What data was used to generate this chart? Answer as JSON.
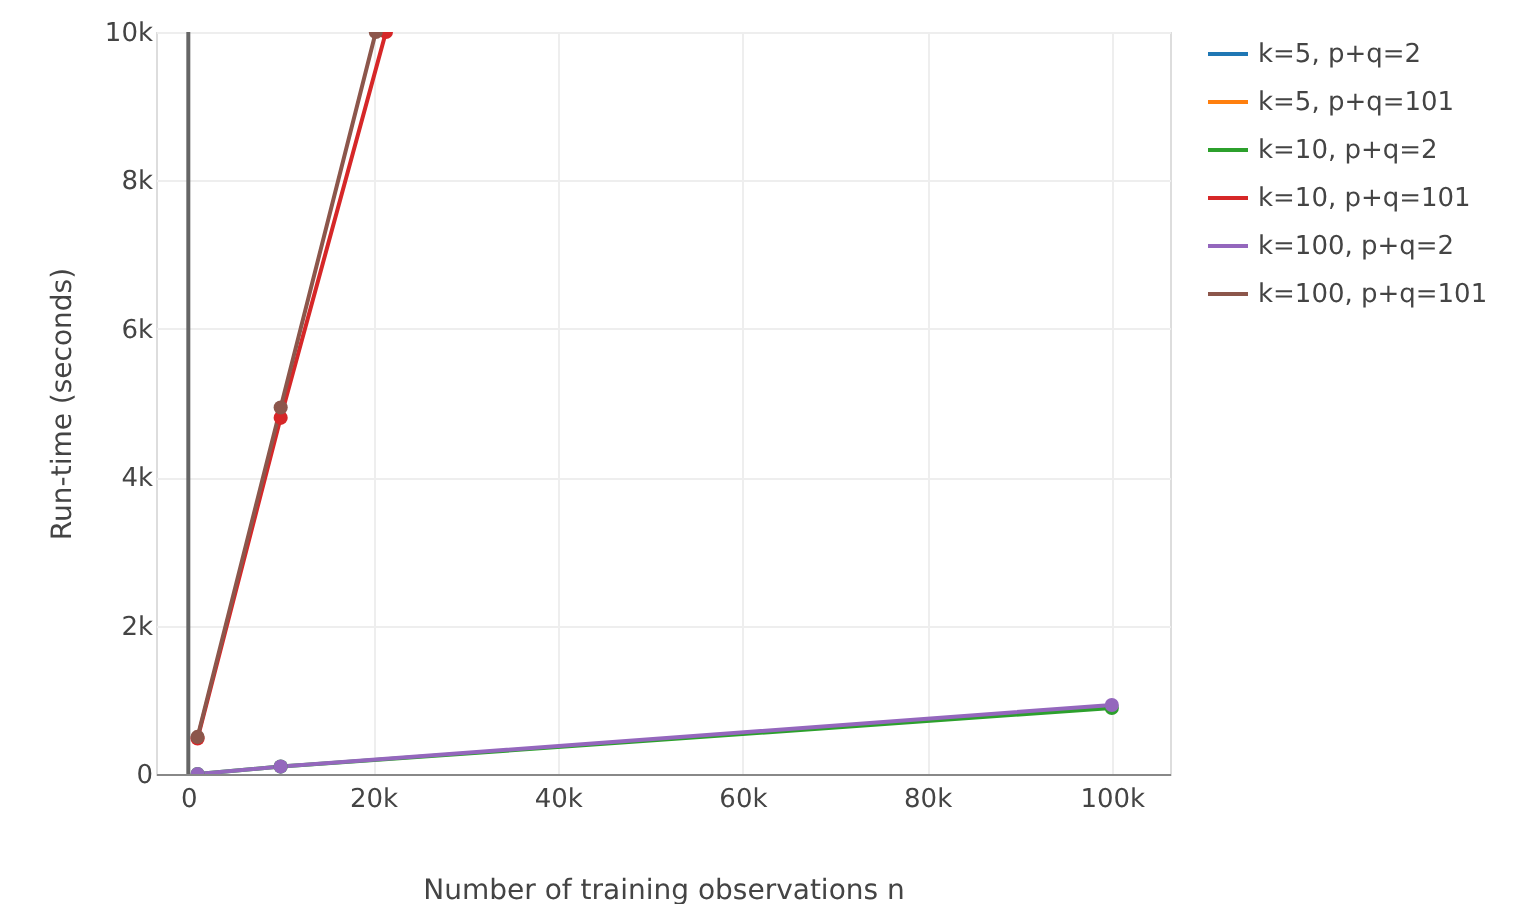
{
  "chart_data": {
    "type": "line",
    "xlabel": "Number of training observations n",
    "ylabel": "Run-time (seconds)",
    "x": [
      1000,
      10000,
      100000
    ],
    "series": [
      {
        "name": "k=5, p+q=2",
        "color": "#1f77b4",
        "values": [
          null,
          null,
          null
        ]
      },
      {
        "name": "k=5, p+q=101",
        "color": "#ff7f0e",
        "values": [
          null,
          null,
          null
        ]
      },
      {
        "name": "k=10, p+q=2",
        "color": "#2ca02c",
        "values": [
          0,
          100,
          890
        ]
      },
      {
        "name": "k=10, p+q=101",
        "color": "#d62728",
        "x": [
          1000,
          10000,
          21400
        ],
        "values": [
          480,
          4800,
          10000
        ]
      },
      {
        "name": "k=100, p+q=2",
        "color": "#9467bd",
        "values": [
          0,
          100,
          930
        ]
      },
      {
        "name": "k=100, p+q=101",
        "color": "#8c564b",
        "x": [
          1000,
          10000,
          20300
        ],
        "values": [
          500,
          4940,
          10000
        ]
      }
    ],
    "xlim": [
      -3500,
      106300
    ],
    "ylim": [
      0,
      10000
    ],
    "xticks": [
      0,
      {
        "value": 20000,
        "label": "20k"
      },
      {
        "value": 40000,
        "label": "40k"
      },
      {
        "value": 60000,
        "label": "60k"
      },
      {
        "value": 80000,
        "label": "80k"
      },
      {
        "value": 100000,
        "label": "100k"
      }
    ],
    "yticks": [
      0,
      {
        "value": 2000,
        "label": "2k"
      },
      {
        "value": 4000,
        "label": "4k"
      },
      {
        "value": 6000,
        "label": "6k"
      },
      {
        "value": 8000,
        "label": "8k"
      },
      {
        "value": 10000,
        "label": "10k"
      }
    ],
    "ref_lines": [
      {
        "axis": "x",
        "value": 0,
        "color": "#666666"
      }
    ],
    "grid": true,
    "legend": "top right",
    "marker": "circle",
    "line_style": "solid"
  }
}
